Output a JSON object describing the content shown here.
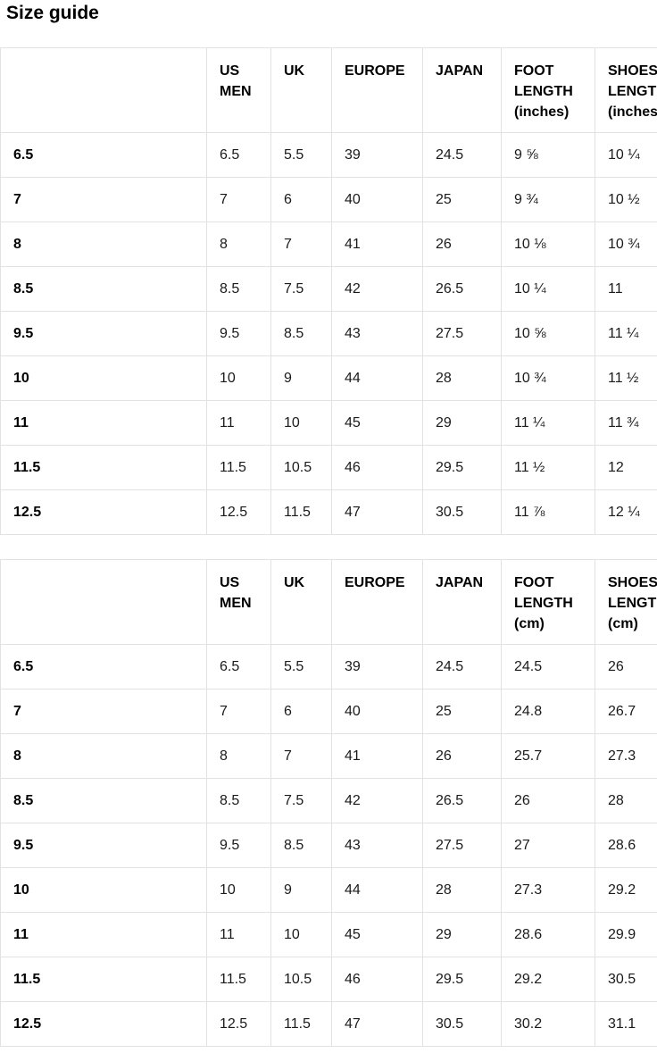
{
  "page": {
    "title": "Size guide"
  },
  "colors": {
    "text": "#111111",
    "border": "#e2e2e2",
    "background": "#ffffff"
  },
  "tables": [
    {
      "name": "mens-sizes-inches",
      "headers": [
        "",
        "US MEN",
        "UK",
        "EUROPE",
        "JAPAN",
        "FOOT LENGTH (inches)",
        "SHOES LENGTH (inches)"
      ],
      "rows": [
        [
          "6.5",
          "6.5",
          "5.5",
          "39",
          "24.5",
          "9 ⅝",
          "10 ¼"
        ],
        [
          "7",
          "7",
          "6",
          "40",
          "25",
          "9 ¾",
          "10 ½"
        ],
        [
          "8",
          "8",
          "7",
          "41",
          "26",
          "10 ⅛",
          "10 ¾"
        ],
        [
          "8.5",
          "8.5",
          "7.5",
          "42",
          "26.5",
          "10 ¼",
          "11"
        ],
        [
          "9.5",
          "9.5",
          "8.5",
          "43",
          "27.5",
          "10 ⅝",
          "11 ¼"
        ],
        [
          "10",
          "10",
          "9",
          "44",
          "28",
          "10 ¾",
          "11 ½"
        ],
        [
          "11",
          "11",
          "10",
          "45",
          "29",
          "11 ¼",
          "11 ¾"
        ],
        [
          "11.5",
          "11.5",
          "10.5",
          "46",
          "29.5",
          "11 ½",
          "12"
        ],
        [
          "12.5",
          "12.5",
          "11.5",
          "47",
          "30.5",
          "11 ⅞",
          "12 ¼"
        ]
      ]
    },
    {
      "name": "mens-sizes-cm",
      "headers": [
        "",
        "US MEN",
        "UK",
        "EUROPE",
        "JAPAN",
        "FOOT LENGTH (cm)",
        "SHOES LENGTH (cm)"
      ],
      "rows": [
        [
          "6.5",
          "6.5",
          "5.5",
          "39",
          "24.5",
          "24.5",
          "26"
        ],
        [
          "7",
          "7",
          "6",
          "40",
          "25",
          "24.8",
          "26.7"
        ],
        [
          "8",
          "8",
          "7",
          "41",
          "26",
          "25.7",
          "27.3"
        ],
        [
          "8.5",
          "8.5",
          "7.5",
          "42",
          "26.5",
          "26",
          "28"
        ],
        [
          "9.5",
          "9.5",
          "8.5",
          "43",
          "27.5",
          "27",
          "28.6"
        ],
        [
          "10",
          "10",
          "9",
          "44",
          "28",
          "27.3",
          "29.2"
        ],
        [
          "11",
          "11",
          "10",
          "45",
          "29",
          "28.6",
          "29.9"
        ],
        [
          "11.5",
          "11.5",
          "10.5",
          "46",
          "29.5",
          "29.2",
          "30.5"
        ],
        [
          "12.5",
          "12.5",
          "11.5",
          "47",
          "30.5",
          "30.2",
          "31.1"
        ]
      ]
    }
  ]
}
